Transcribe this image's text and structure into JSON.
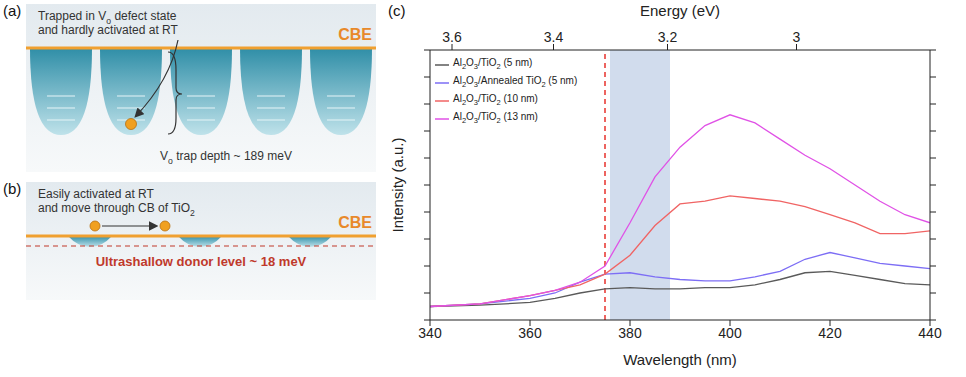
{
  "chart_data": {
    "type": "line",
    "panel": "(c)",
    "xlabel": "Wavelength (nm)",
    "ylabel": "Intensity (a.u.)",
    "x2label": "Energy (eV)",
    "xlim": [
      340,
      440
    ],
    "xticks": [
      340,
      360,
      380,
      400,
      420,
      440
    ],
    "x2lim": [
      340,
      440
    ],
    "x2ticks": [
      {
        "value": 344.4,
        "label": "3.6"
      },
      {
        "value": 364.7,
        "label": "3.4"
      },
      {
        "value": 387.5,
        "label": "3.2"
      },
      {
        "value": 413.3,
        "label": "3"
      }
    ],
    "ylim": [
      0,
      10
    ],
    "yticks": [
      0,
      1,
      2,
      3,
      4,
      5,
      6,
      7,
      8,
      9,
      10
    ],
    "tick_labels": "x",
    "legend": "upper left",
    "x": [
      340,
      350,
      360,
      365,
      370,
      375,
      380,
      385,
      390,
      395,
      400,
      405,
      410,
      415,
      420,
      425,
      430,
      435,
      440
    ],
    "series": [
      {
        "name": "Al2O3/TiO2 (5 nm)",
        "color": "#5a5a5a",
        "values": [
          0.5,
          0.55,
          0.65,
          0.8,
          1.0,
          1.15,
          1.2,
          1.15,
          1.15,
          1.2,
          1.2,
          1.3,
          1.5,
          1.75,
          1.8,
          1.65,
          1.5,
          1.35,
          1.3
        ]
      },
      {
        "name": "Al2O3/Annealed TiO2 (5 nm)",
        "color": "#7d6ef5",
        "values": [
          0.5,
          0.6,
          0.8,
          1.0,
          1.4,
          1.7,
          1.75,
          1.6,
          1.5,
          1.45,
          1.45,
          1.6,
          1.8,
          2.25,
          2.5,
          2.3,
          2.1,
          2.0,
          1.9
        ]
      },
      {
        "name": "Al2O3/TiO2 (10 nm)",
        "color": "#f06464",
        "values": [
          0.5,
          0.6,
          0.9,
          1.1,
          1.3,
          1.7,
          2.4,
          3.5,
          4.3,
          4.4,
          4.6,
          4.5,
          4.4,
          4.2,
          3.9,
          3.6,
          3.2,
          3.2,
          3.3
        ]
      },
      {
        "name": "Al2O3/TiO2 (13 nm)",
        "color": "#e052e6",
        "values": [
          0.5,
          0.6,
          0.9,
          1.1,
          1.4,
          2.0,
          3.6,
          5.3,
          6.4,
          7.2,
          7.6,
          7.3,
          6.7,
          6.1,
          5.6,
          5.0,
          4.4,
          3.9,
          3.6
        ]
      }
    ],
    "highlight": {
      "x": [
        376,
        388
      ],
      "color": "#c9d6ea"
    },
    "marker_line": {
      "x": 375,
      "color": "#e8322c",
      "line_style": "dashed"
    }
  },
  "diagrams": [
    {
      "label": "(a)",
      "text": [
        "Trapped in Vo defect state",
        "and hardly activated at RT"
      ],
      "band_edge": "CBE",
      "level_label": "Vo trap depth ~ 189 meV"
    },
    {
      "label": "(b)",
      "text": [
        "Easily activated at RT",
        "and move through CB of TiO2"
      ],
      "band_edge": "CBE",
      "level_label": "Ultrashallow donor level ~ 18 meV"
    }
  ]
}
